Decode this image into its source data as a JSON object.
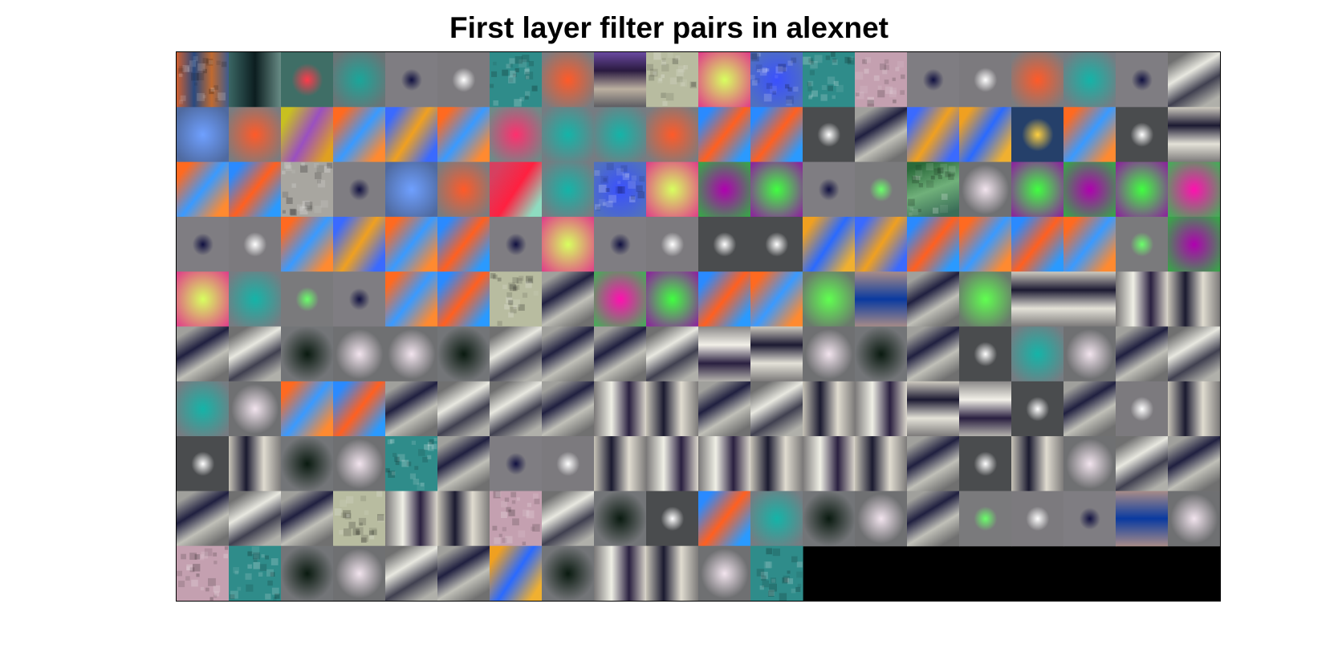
{
  "title": "First layer filter pairs in alexnet",
  "image": {
    "subject": "filter-mosaic",
    "grid": {
      "rows": 10,
      "cols": 20
    },
    "tiles_filled": 192,
    "empty_fill": "#000000",
    "tiles": [
      [
        "plaid-orange-blue",
        "teal-vertical-stripe",
        "red-blob-on-teal",
        "teal-blob-on-grey",
        "dark-dot-on-grey",
        "white-dot-on-grey",
        "teal-noise",
        "orange-blob",
        "purple-horizontal-bands",
        "beige-noise",
        "yellow-green-blob",
        "blue-noise-blob",
        "teal-noise",
        "pink-noise",
        "dark-dot-on-grey",
        "white-dot-on-grey",
        "orange-blob",
        "teal-blob",
        "dark-dot-on-grey",
        "white-diagonal-on-grey"
      ],
      [
        "blue-blob",
        "orange-blob",
        "yellow-purple-diagonal",
        "orange-blue-diagonal",
        "blue-yellow-diagonal",
        "orange-blue-diagonal",
        "pink-blob",
        "teal-blob",
        "teal-blob",
        "orange-blob",
        "blue-orange-diagonal",
        "blue-orange-diagonal",
        "white-dot-on-dark",
        "dark-diagonal-on-grey",
        "blue-yellow-diagonal",
        "yellow-blue-diagonal",
        "yellow-dot-on-navy",
        "orange-blue-diagonal",
        "white-dot-on-dark",
        "dark-horizontal-bar"
      ],
      [
        "orange-blue-diagonal",
        "blue-orange-diagonal",
        "pale-noise",
        "dark-dot-on-grey",
        "blue-blob",
        "orange-blob",
        "red-blob-on-mint",
        "teal-blob",
        "blue-noise-blob",
        "yellow-green-blob",
        "purple-blob-on-green",
        "green-blob-on-purple",
        "dark-dot-on-grey",
        "green-dot-on-grey",
        "green-noise",
        "white-blob",
        "green-blob-on-purple",
        "purple-blob-on-green",
        "green-blob-on-purple",
        "pink-blob-on-green"
      ],
      [
        "dark-dot-on-grey",
        "white-dot-on-grey",
        "orange-blue-diagonal",
        "blue-yellow-diagonal",
        "orange-blue-diagonal",
        "blue-orange-diagonal",
        "dark-dot-on-grey",
        "yellow-green-blob",
        "dark-dot-on-grey",
        "white-dot-on-grey",
        "white-dot-on-dark",
        "white-dot-on-dark",
        "yellow-blue-diagonal",
        "blue-yellow-diagonal",
        "blue-orange-diagonal",
        "orange-blue-diagonal",
        "blue-orange-diagonal",
        "orange-blue-diagonal",
        "green-dot-on-grey",
        "purple-blob-on-green"
      ],
      [
        "yellow-green-blob",
        "teal-blob",
        "green-dot-on-grey",
        "dark-dot-on-grey",
        "orange-blue-diagonal",
        "blue-orange-diagonal",
        "beige-noise",
        "dark-diagonal-on-grey",
        "pink-blob-on-green",
        "green-blob-on-purple",
        "blue-orange-diagonal",
        "orange-blue-diagonal",
        "green-blob",
        "blue-horizontal-bar",
        "dark-diagonal-on-grey",
        "green-blob",
        "dark-horizontal-bar",
        "dark-horizontal-bar",
        "white-vertical-stripe",
        "dark-vertical-stripe"
      ],
      [
        "dark-diagonal-on-grey",
        "white-diagonal-on-grey",
        "dark-blob",
        "white-blob",
        "white-blob",
        "dark-blob",
        "white-diagonal-on-grey",
        "dark-diagonal-on-grey",
        "dark-diagonal-on-grey",
        "white-diagonal-on-grey",
        "white-horizontal-bar",
        "dark-horizontal-bar",
        "white-blob",
        "dark-blob",
        "dark-diagonal-on-grey",
        "white-dot-on-dark",
        "teal-blob",
        "white-blob",
        "dark-diagonal-on-grey",
        "white-diagonal-on-grey"
      ],
      [
        "teal-blob",
        "white-blob",
        "orange-blue-diagonal",
        "blue-orange-diagonal",
        "dark-diagonal-on-grey",
        "white-diagonal-on-grey",
        "white-diagonal-on-grey",
        "dark-diagonal-on-grey",
        "white-vertical-stripe",
        "dark-vertical-stripe",
        "dark-diagonal-on-grey",
        "white-diagonal-on-grey",
        "dark-vertical-stripe",
        "white-vertical-stripe",
        "dark-horizontal-bar",
        "white-horizontal-bar",
        "white-dot-on-dark",
        "dark-diagonal-on-grey",
        "white-dot-on-grey",
        "dark-vertical-stripe"
      ],
      [
        "white-dot-on-dark",
        "dark-vertical-stripe",
        "dark-blob",
        "white-blob",
        "teal-noise",
        "dark-diagonal-on-grey",
        "dark-dot-on-grey",
        "white-dot-on-grey",
        "dark-vertical-stripe",
        "white-vertical-stripe",
        "white-vertical-stripe",
        "dark-vertical-stripe",
        "white-vertical-stripe",
        "dark-vertical-stripe",
        "dark-diagonal-on-grey",
        "white-dot-on-dark",
        "dark-vertical-stripe",
        "white-blob",
        "white-diagonal-on-grey",
        "dark-diagonal-on-grey"
      ],
      [
        "dark-diagonal-on-grey",
        "white-diagonal-on-grey",
        "dark-diagonal-on-grey",
        "beige-noise",
        "white-vertical-stripe",
        "dark-vertical-stripe",
        "pink-noise",
        "white-diagonal-on-grey",
        "dark-blob",
        "white-dot-on-dark",
        "blue-orange-diagonal",
        "teal-blob",
        "dark-blob",
        "white-blob",
        "dark-diagonal-on-grey",
        "green-dot-on-grey",
        "white-dot-on-grey",
        "dark-dot-on-grey",
        "blue-horizontal-bar",
        "white-blob"
      ],
      [
        "pink-noise",
        "teal-noise",
        "dark-blob",
        "white-blob",
        "white-diagonal-on-grey",
        "dark-diagonal-on-grey",
        "yellow-blue-diagonal",
        "dark-blob",
        "white-vertical-stripe",
        "dark-vertical-stripe",
        "white-blob",
        "teal-noise"
      ]
    ]
  }
}
